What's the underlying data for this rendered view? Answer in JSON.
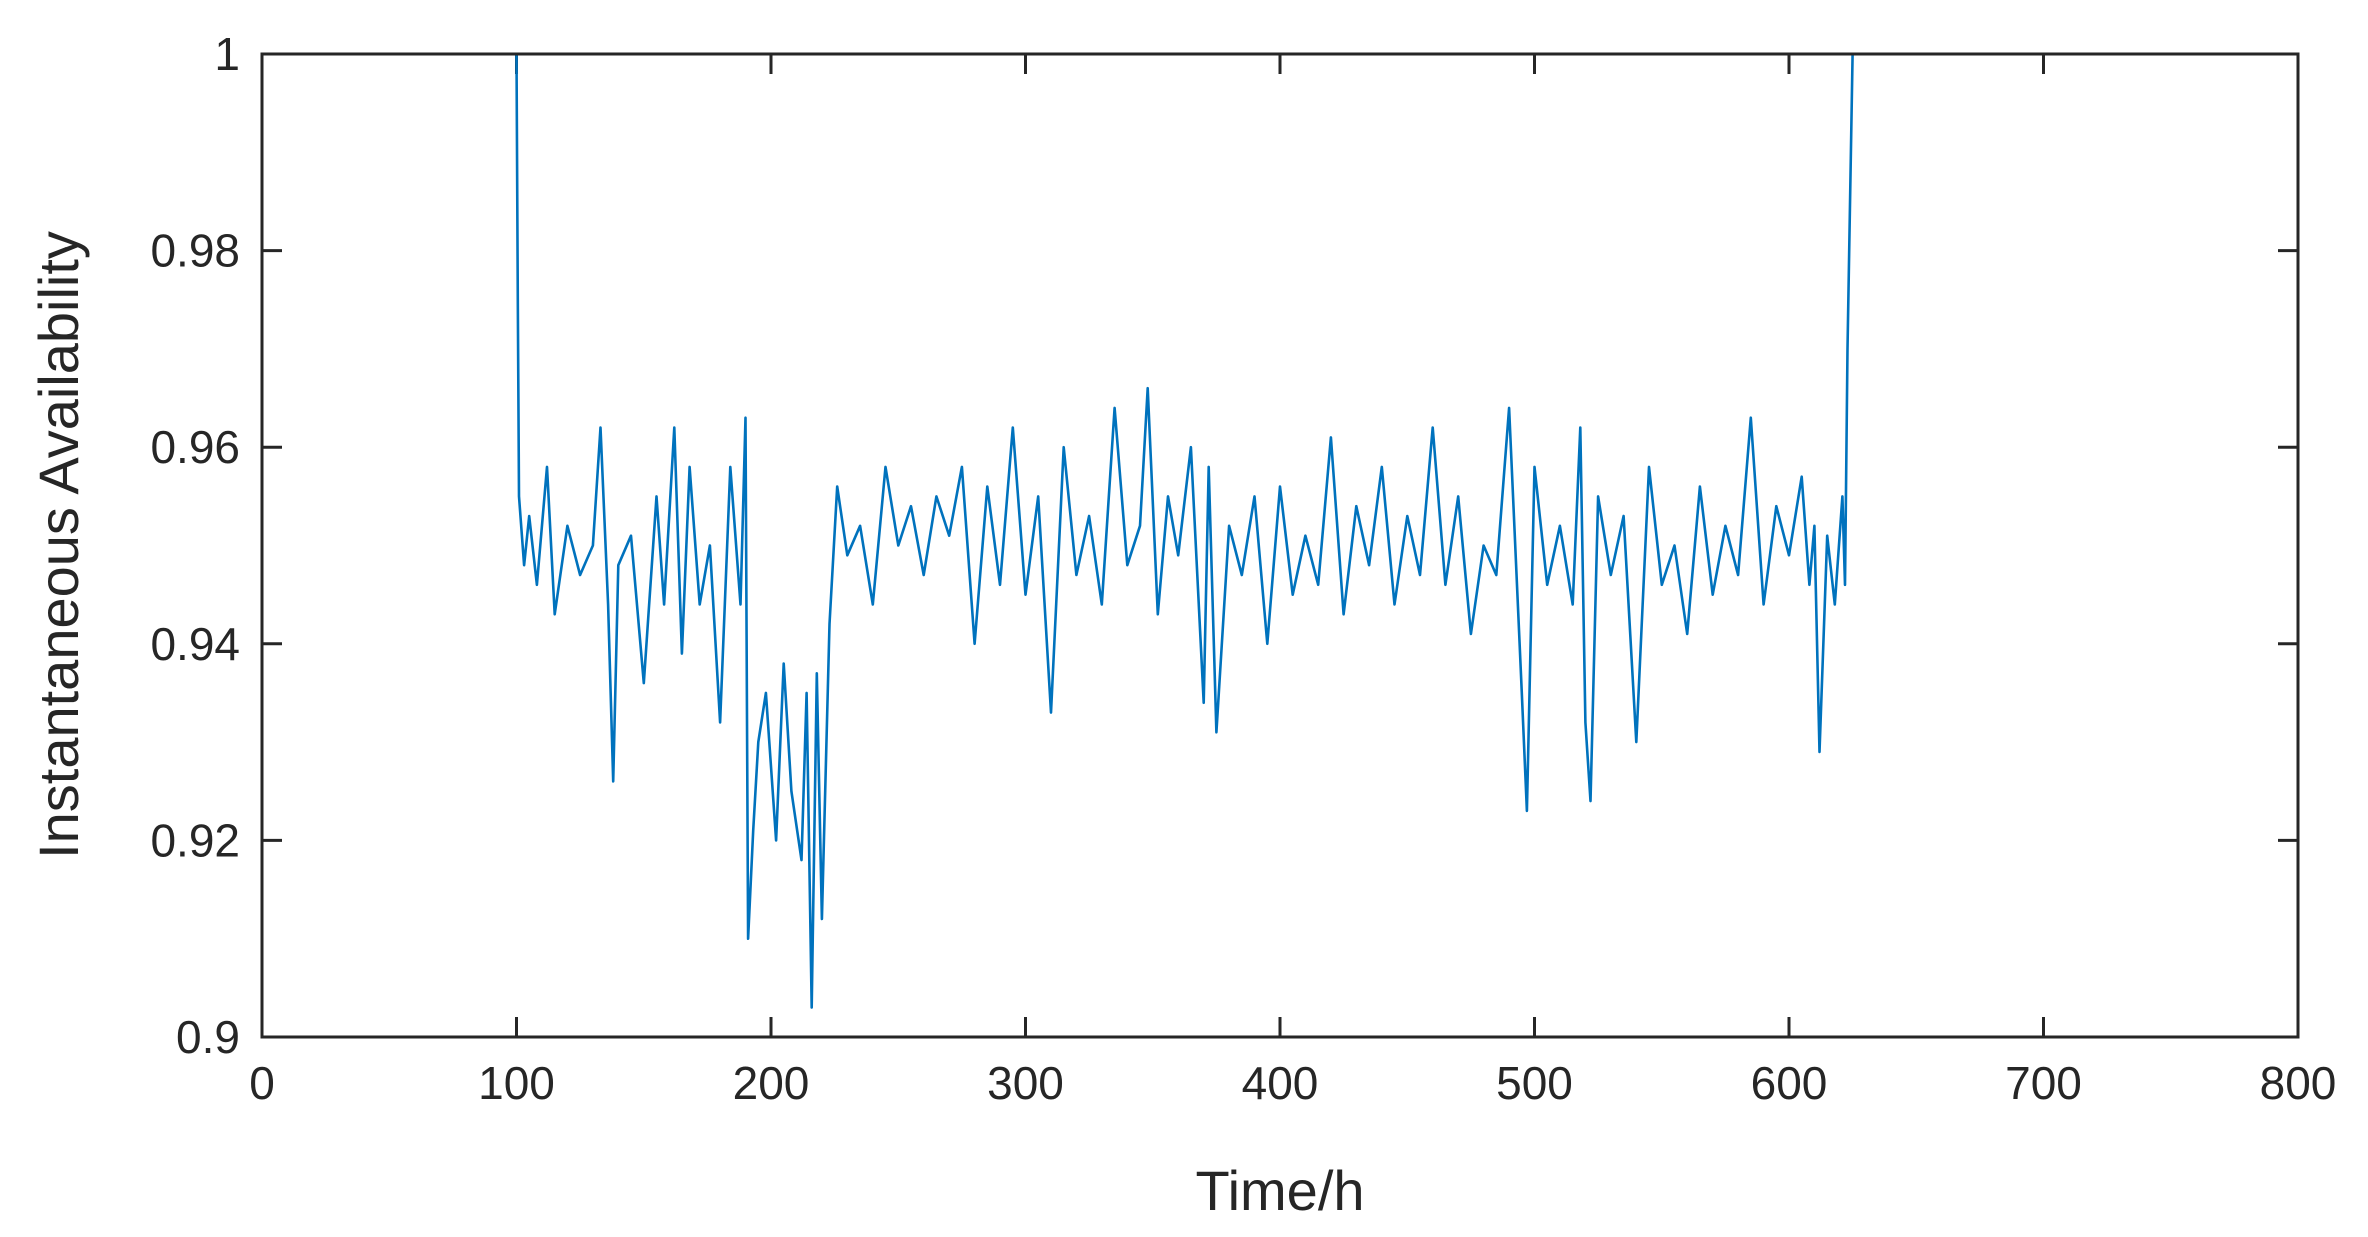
{
  "chart_data": {
    "type": "line",
    "xlabel": "Time/h",
    "ylabel": "Instantaneous Availability",
    "xlim": [
      0,
      800
    ],
    "ylim": [
      0.9,
      1
    ],
    "xticks": [
      0,
      100,
      200,
      300,
      400,
      500,
      600,
      700,
      800
    ],
    "yticks": [
      0.9,
      0.92,
      0.94,
      0.96,
      0.98,
      1
    ],
    "xtick_labels": [
      "0",
      "100",
      "200",
      "300",
      "400",
      "500",
      "600",
      "700",
      "800"
    ],
    "ytick_labels": [
      "0.9",
      "0.92",
      "0.94",
      "0.96",
      "0.98",
      "1"
    ],
    "grid": false,
    "line_color": "#0072BD",
    "series": [
      {
        "x": [
          0,
          50,
          99,
          100,
          100.5,
          101,
          103,
          105,
          108,
          112,
          115,
          120,
          125,
          130,
          133,
          136,
          138,
          140,
          145,
          150,
          155,
          158,
          162,
          165,
          168,
          172,
          176,
          180,
          184,
          188,
          190,
          191,
          193,
          195,
          198,
          202,
          205,
          208,
          212,
          214,
          216,
          218,
          220,
          223,
          226,
          230,
          235,
          240,
          245,
          250,
          255,
          260,
          265,
          270,
          275,
          280,
          285,
          290,
          295,
          300,
          305,
          310,
          315,
          320,
          325,
          330,
          335,
          340,
          345,
          348,
          352,
          356,
          360,
          365,
          370,
          372,
          375,
          380,
          385,
          390,
          395,
          400,
          405,
          410,
          415,
          420,
          425,
          430,
          435,
          440,
          445,
          450,
          455,
          460,
          465,
          470,
          475,
          480,
          485,
          490,
          495,
          497,
          500,
          505,
          510,
          515,
          518,
          520,
          522,
          525,
          530,
          535,
          540,
          545,
          550,
          555,
          560,
          565,
          570,
          575,
          580,
          585,
          590,
          595,
          600,
          605,
          608,
          610,
          612,
          615,
          618,
          621,
          622,
          623,
          625,
          650,
          700,
          722
        ],
        "y": [
          1,
          1,
          1,
          1,
          0.975,
          0.955,
          0.948,
          0.953,
          0.946,
          0.958,
          0.943,
          0.952,
          0.947,
          0.95,
          0.962,
          0.944,
          0.926,
          0.948,
          0.951,
          0.936,
          0.955,
          0.944,
          0.962,
          0.939,
          0.958,
          0.944,
          0.95,
          0.932,
          0.958,
          0.944,
          0.963,
          0.91,
          0.921,
          0.93,
          0.935,
          0.92,
          0.938,
          0.925,
          0.918,
          0.935,
          0.903,
          0.937,
          0.912,
          0.942,
          0.956,
          0.949,
          0.952,
          0.944,
          0.958,
          0.95,
          0.954,
          0.947,
          0.955,
          0.951,
          0.958,
          0.94,
          0.956,
          0.946,
          0.962,
          0.945,
          0.955,
          0.933,
          0.96,
          0.947,
          0.953,
          0.944,
          0.964,
          0.948,
          0.952,
          0.966,
          0.943,
          0.955,
          0.949,
          0.96,
          0.934,
          0.958,
          0.931,
          0.952,
          0.947,
          0.955,
          0.94,
          0.956,
          0.945,
          0.951,
          0.946,
          0.961,
          0.943,
          0.954,
          0.948,
          0.958,
          0.944,
          0.953,
          0.947,
          0.962,
          0.946,
          0.955,
          0.941,
          0.95,
          0.947,
          0.964,
          0.935,
          0.923,
          0.958,
          0.946,
          0.952,
          0.944,
          0.962,
          0.932,
          0.924,
          0.955,
          0.947,
          0.953,
          0.93,
          0.958,
          0.946,
          0.95,
          0.941,
          0.956,
          0.945,
          0.952,
          0.947,
          0.963,
          0.944,
          0.954,
          0.949,
          0.957,
          0.946,
          0.952,
          0.929,
          0.951,
          0.944,
          0.955,
          0.946,
          0.97,
          1,
          1,
          1,
          1
        ]
      }
    ]
  }
}
